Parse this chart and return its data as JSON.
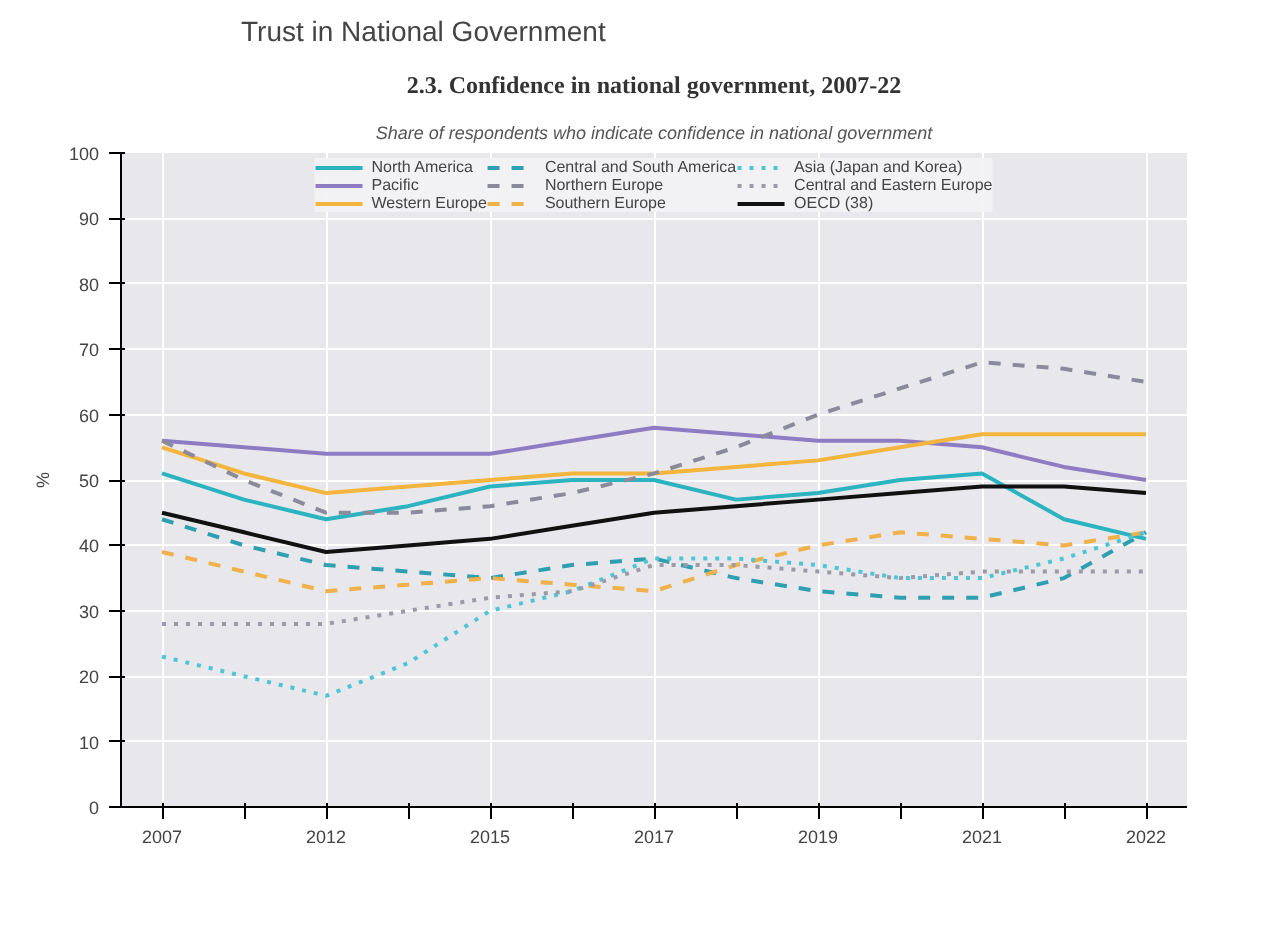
{
  "chart_data": {
    "type": "line",
    "title": "Trust in National Government",
    "subtitle": "2.3. Confidence in national government, 2007-22",
    "annotations": [
      "Share of respondents who indicate confidence in national government",
      "30"
    ],
    "ylabel": "%",
    "categories": [
      "2007",
      null,
      "2012",
      null,
      "2015",
      null,
      "2017",
      null,
      "2019",
      null,
      "2021",
      null,
      "2022"
    ],
    "ylim": [
      0,
      100
    ],
    "yticks": [
      0,
      10,
      20,
      30,
      40,
      50,
      60,
      70,
      80,
      90,
      100
    ],
    "grid": true,
    "legend": "top",
    "series": [
      {
        "name": "North America",
        "color": "#2bb3c0",
        "line_style": "solid",
        "values": [
          51,
          47,
          44,
          46,
          49,
          50,
          50,
          47,
          48,
          50,
          51,
          44,
          41
        ]
      },
      {
        "name": "Pacific",
        "color": "#8e7cc3",
        "line_style": "solid",
        "values": [
          56,
          55,
          54,
          54,
          54,
          56,
          58,
          57,
          56,
          56,
          55,
          52,
          50
        ]
      },
      {
        "name": "Western Europe",
        "color": "#f4b53f",
        "line_style": "solid",
        "values": [
          55,
          51,
          48,
          49,
          50,
          51,
          51,
          52,
          53,
          55,
          57,
          57,
          57
        ]
      },
      {
        "name": "Central and South America",
        "color": "#2e9fb0",
        "line_style": "dashed",
        "values": [
          44,
          40,
          37,
          36,
          35,
          37,
          38,
          35,
          33,
          32,
          32,
          35,
          42
        ]
      },
      {
        "name": "Northern Europe",
        "color": "#8a8a9a",
        "line_style": "dashed",
        "values": [
          56,
          50,
          45,
          45,
          46,
          48,
          51,
          55,
          60,
          64,
          68,
          67,
          65
        ]
      },
      {
        "name": "Southern Europe",
        "color": "#f0b04a",
        "line_style": "dashed",
        "values": [
          39,
          36,
          33,
          34,
          35,
          34,
          33,
          37,
          40,
          42,
          41,
          40,
          42
        ]
      },
      {
        "name": "Asia (Japan and Korea)",
        "color": "#4cc6d6",
        "line_style": "dotted",
        "values": [
          23,
          20,
          17,
          22,
          30,
          33,
          38,
          38,
          37,
          35,
          35,
          38,
          42
        ]
      },
      {
        "name": "Central and Eastern Europe",
        "color": "#9a9aa8",
        "line_style": "dotted",
        "values": [
          28,
          28,
          28,
          30,
          32,
          33,
          37,
          37,
          36,
          35,
          36,
          36,
          36
        ]
      },
      {
        "name": "OECD (38)",
        "color": "#111111",
        "line_style": "solid",
        "values": [
          45,
          42,
          39,
          40,
          41,
          43,
          45,
          46,
          47,
          48,
          49,
          49,
          48
        ]
      }
    ]
  }
}
